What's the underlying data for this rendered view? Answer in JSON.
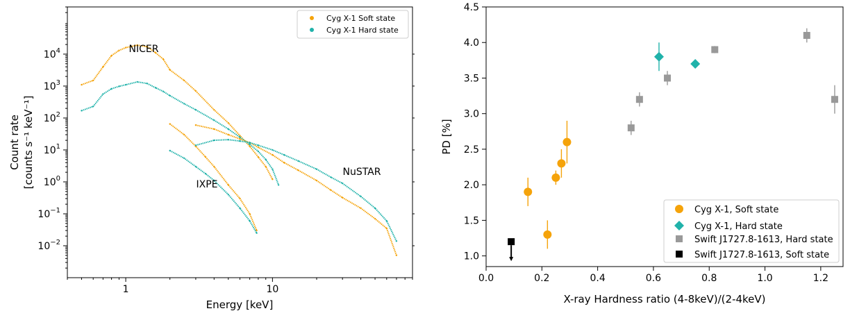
{
  "chart_data": [
    {
      "type": "line",
      "xscale": "log",
      "yscale": "log",
      "xlabel": "Energy [keV]",
      "ylabel_line1": "Count rate",
      "ylabel_line2": "[counts s⁻¹ keV⁻¹]",
      "xlim": [
        0.4,
        90
      ],
      "ylim": [
        0.001,
        300000
      ],
      "x_ticks": [
        {
          "value": 1,
          "label": "1"
        },
        {
          "value": 10,
          "label": "10"
        }
      ],
      "y_ticks": [
        {
          "value": 0.01,
          "base": "10",
          "exp": "−2"
        },
        {
          "value": 0.1,
          "base": "10",
          "exp": "−1"
        },
        {
          "value": 1,
          "base": "10",
          "exp": "0"
        },
        {
          "value": 10,
          "base": "10",
          "exp": "1"
        },
        {
          "value": 100,
          "base": "10",
          "exp": "2"
        },
        {
          "value": 1000,
          "base": "10",
          "exp": "3"
        },
        {
          "value": 10000,
          "base": "10",
          "exp": "4"
        }
      ],
      "legend_position": "top-right",
      "legend": [
        {
          "label": "Cyg X-1 Soft state",
          "color": "#F5A30A"
        },
        {
          "label": "Cyg X-1 Hard state",
          "color": "#20B2AA"
        }
      ],
      "annotations": [
        {
          "text": "NICER",
          "x": 1.2,
          "y": 2200
        },
        {
          "text": "IXPE",
          "x": 2.85,
          "y": 0.55
        },
        {
          "text": "NuSTAR",
          "x": 35,
          "y": 1.0
        }
      ],
      "series": [
        {
          "name": "Cyg X-1 Soft state",
          "instrument": "NICER",
          "color": "#F5A30A",
          "points": [
            [
              0.5,
              1100
            ],
            [
              0.6,
              1500
            ],
            [
              0.7,
              4000
            ],
            [
              0.8,
              9000
            ],
            [
              0.9,
              13000
            ],
            [
              1.0,
              16000
            ],
            [
              1.2,
              19000
            ],
            [
              1.4,
              17000
            ],
            [
              1.6,
              11000
            ],
            [
              1.8,
              7000
            ],
            [
              2.0,
              3200
            ],
            [
              2.5,
              1500
            ],
            [
              3,
              700
            ],
            [
              4,
              180
            ],
            [
              5,
              70
            ],
            [
              6,
              28
            ],
            [
              7,
              13
            ],
            [
              8,
              6
            ],
            [
              9,
              3
            ],
            [
              10,
              1.2
            ]
          ]
        },
        {
          "name": "Cyg X-1 Hard state",
          "instrument": "NICER",
          "color": "#20B2AA",
          "points": [
            [
              0.5,
              170
            ],
            [
              0.6,
              230
            ],
            [
              0.7,
              560
            ],
            [
              0.8,
              820
            ],
            [
              0.9,
              980
            ],
            [
              1.0,
              1100
            ],
            [
              1.2,
              1350
            ],
            [
              1.4,
              1200
            ],
            [
              1.6,
              880
            ],
            [
              1.8,
              680
            ],
            [
              2.0,
              500
            ],
            [
              2.5,
              280
            ],
            [
              3,
              180
            ],
            [
              4,
              85
            ],
            [
              5,
              45
            ],
            [
              6,
              25
            ],
            [
              7,
              15
            ],
            [
              8,
              9
            ],
            [
              9,
              5
            ],
            [
              10,
              2.5
            ],
            [
              11,
              0.8
            ]
          ]
        },
        {
          "name": "Cyg X-1 Soft state",
          "instrument": "IXPE",
          "color": "#F5A30A",
          "points": [
            [
              2,
              65
            ],
            [
              2.5,
              30
            ],
            [
              3,
              13
            ],
            [
              3.5,
              6
            ],
            [
              4,
              3
            ],
            [
              5,
              0.8
            ],
            [
              6,
              0.3
            ],
            [
              7,
              0.1
            ],
            [
              7.8,
              0.03
            ]
          ]
        },
        {
          "name": "Cyg X-1 Hard state",
          "instrument": "IXPE",
          "color": "#20B2AA",
          "points": [
            [
              2,
              9.5
            ],
            [
              2.5,
              5.5
            ],
            [
              3,
              3
            ],
            [
              3.5,
              1.8
            ],
            [
              4,
              1.1
            ],
            [
              5,
              0.4
            ],
            [
              6,
              0.15
            ],
            [
              7,
              0.06
            ],
            [
              7.8,
              0.025
            ]
          ]
        },
        {
          "name": "Cyg X-1 Soft state",
          "instrument": "NuSTAR",
          "color": "#F5A30A",
          "points": [
            [
              3,
              60
            ],
            [
              4,
              45
            ],
            [
              5,
              30
            ],
            [
              6,
              22
            ],
            [
              7,
              17
            ],
            [
              8,
              12
            ],
            [
              10,
              7
            ],
            [
              12,
              4
            ],
            [
              15,
              2.3
            ],
            [
              20,
              1.1
            ],
            [
              25,
              0.55
            ],
            [
              30,
              0.32
            ],
            [
              40,
              0.15
            ],
            [
              50,
              0.07
            ],
            [
              60,
              0.035
            ],
            [
              70,
              0.005
            ]
          ]
        },
        {
          "name": "Cyg X-1 Hard state",
          "instrument": "NuSTAR",
          "color": "#20B2AA",
          "points": [
            [
              3,
              14
            ],
            [
              4,
              20
            ],
            [
              5,
              21
            ],
            [
              6,
              19
            ],
            [
              7,
              17
            ],
            [
              8,
              14
            ],
            [
              10,
              10
            ],
            [
              12,
              7
            ],
            [
              15,
              4.5
            ],
            [
              20,
              2.5
            ],
            [
              25,
              1.4
            ],
            [
              30,
              0.9
            ],
            [
              40,
              0.35
            ],
            [
              50,
              0.15
            ],
            [
              60,
              0.06
            ],
            [
              70,
              0.014
            ]
          ]
        }
      ]
    },
    {
      "type": "scatter",
      "xlabel": "X-ray Hardness ratio (4-8keV)/(2-4keV)",
      "ylabel": "PD [%]",
      "xlim": [
        0.0,
        1.28
      ],
      "ylim": [
        0.85,
        4.5
      ],
      "x_ticks": [
        "0.0",
        "0.2",
        "0.4",
        "0.6",
        "0.8",
        "1.0",
        "1.2"
      ],
      "y_ticks": [
        "1.0",
        "1.5",
        "2.0",
        "2.5",
        "3.0",
        "3.5",
        "4.0",
        "4.5"
      ],
      "legend_position": "lower-right",
      "legend": [
        {
          "label": "Cyg X-1, Soft state",
          "color": "#F5A30A",
          "marker": "circle"
        },
        {
          "label": "Cyg X-1, Hard state",
          "color": "#20B2AA",
          "marker": "diamond"
        },
        {
          "label": "Swift J1727.8-1613, Hard state",
          "color": "#999999",
          "marker": "square"
        },
        {
          "label": "Swift J1727.8-1613, Soft state",
          "color": "#000000",
          "marker": "square"
        }
      ],
      "series": [
        {
          "name": "Cyg X-1, Soft state",
          "marker": "circle",
          "color": "#F5A30A",
          "points": [
            {
              "x": 0.15,
              "y": 1.9,
              "err": 0.2
            },
            {
              "x": 0.22,
              "y": 1.3,
              "err": 0.2
            },
            {
              "x": 0.25,
              "y": 2.1,
              "err": 0.1
            },
            {
              "x": 0.27,
              "y": 2.3,
              "err": 0.2
            },
            {
              "x": 0.29,
              "y": 2.6,
              "err": 0.3
            }
          ]
        },
        {
          "name": "Cyg X-1, Hard state",
          "marker": "diamond",
          "color": "#20B2AA",
          "points": [
            {
              "x": 0.62,
              "y": 3.8,
              "err": 0.2
            },
            {
              "x": 0.75,
              "y": 3.7,
              "err": 0.0
            }
          ]
        },
        {
          "name": "Swift J1727.8-1613, Hard state",
          "marker": "square",
          "color": "#999999",
          "points": [
            {
              "x": 0.52,
              "y": 2.8,
              "err": 0.1
            },
            {
              "x": 0.55,
              "y": 3.2,
              "err": 0.1
            },
            {
              "x": 0.65,
              "y": 3.5,
              "err": 0.1
            },
            {
              "x": 0.82,
              "y": 3.9,
              "err": 0.05
            },
            {
              "x": 1.15,
              "y": 4.1,
              "err": 0.1
            },
            {
              "x": 1.25,
              "y": 3.2,
              "err": 0.2
            }
          ]
        },
        {
          "name": "Swift J1727.8-1613, Soft state",
          "marker": "square",
          "color": "#000000",
          "points": [
            {
              "x": 0.09,
              "y": 1.2,
              "err": 0.0,
              "upper_limit": true
            }
          ]
        }
      ]
    }
  ]
}
